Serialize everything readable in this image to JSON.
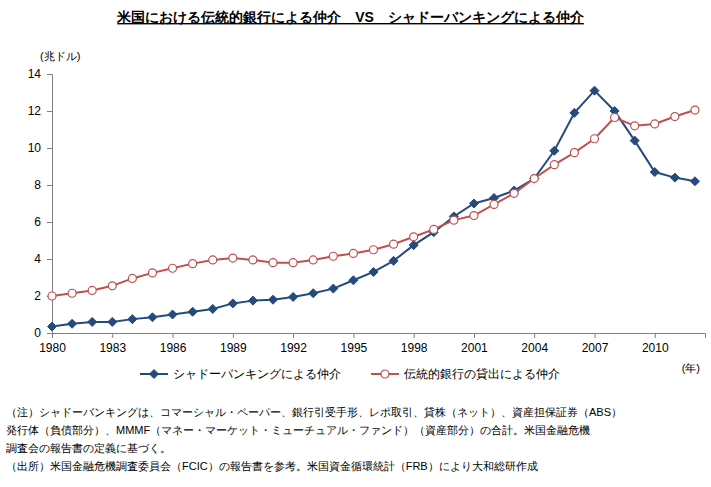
{
  "chart_data": {
    "type": "line",
    "title": "米国における伝統的銀行による仲介　VS　シャドーバンキングによる仲介",
    "y_label": "(兆ドル)",
    "x_label": "(年)",
    "x": [
      1980,
      1981,
      1982,
      1983,
      1984,
      1985,
      1986,
      1987,
      1988,
      1989,
      1990,
      1991,
      1992,
      1993,
      1994,
      1995,
      1996,
      1997,
      1998,
      1999,
      2000,
      2001,
      2002,
      2003,
      2004,
      2005,
      2006,
      2007,
      2008,
      2009,
      2010,
      2011,
      2012
    ],
    "series": [
      {
        "name": "シャドーバンキングによる仲介",
        "color": "#254a7c",
        "marker": "diamond",
        "line_style": "solid",
        "values": [
          0.35,
          0.5,
          0.6,
          0.6,
          0.75,
          0.85,
          1.0,
          1.15,
          1.3,
          1.6,
          1.75,
          1.8,
          1.95,
          2.15,
          2.4,
          2.85,
          3.3,
          3.9,
          4.75,
          5.45,
          6.3,
          7.0,
          7.3,
          7.7,
          8.35,
          9.85,
          11.9,
          13.1,
          12.0,
          10.4,
          8.7,
          8.4,
          8.2
        ]
      },
      {
        "name": "伝統的銀行の貸出による仲介",
        "color": "#c0504d",
        "marker": "circle",
        "line_style": "solid",
        "values": [
          2.0,
          2.15,
          2.3,
          2.55,
          2.95,
          3.25,
          3.5,
          3.75,
          3.95,
          4.05,
          3.95,
          3.8,
          3.8,
          3.95,
          4.15,
          4.3,
          4.5,
          4.8,
          5.2,
          5.6,
          6.1,
          6.35,
          6.95,
          7.55,
          8.35,
          9.1,
          9.75,
          10.5,
          11.65,
          11.2,
          11.3,
          11.7,
          12.05
        ]
      }
    ],
    "xlim": [
      1980,
      2012.5
    ],
    "xticks": [
      1980,
      1983,
      1986,
      1989,
      1992,
      1995,
      1998,
      2001,
      2004,
      2007,
      2010
    ],
    "ylim": [
      0,
      14
    ],
    "yticks": [
      0,
      2,
      4,
      6,
      8,
      10,
      12,
      14
    ],
    "grid": false,
    "legend": "bottom",
    "notes": [
      "（注）シャドーバンキングは、コマーシャル・ペーパー、銀行引受手形、レポ取引、貸株（ネット）、資産担保証券（ABS）",
      "発行体（負債部分）、MMMF（マネー・マーケット・ミューチュアル・ファンド）（資産部分）の合計。米国金融危機",
      "調査会の報告書の定義に基づく。",
      "（出所）米国金融危機調査委員会（FCIC）の報告書を参考。米国資金循環統計（FRB）により大和総研作成"
    ]
  }
}
